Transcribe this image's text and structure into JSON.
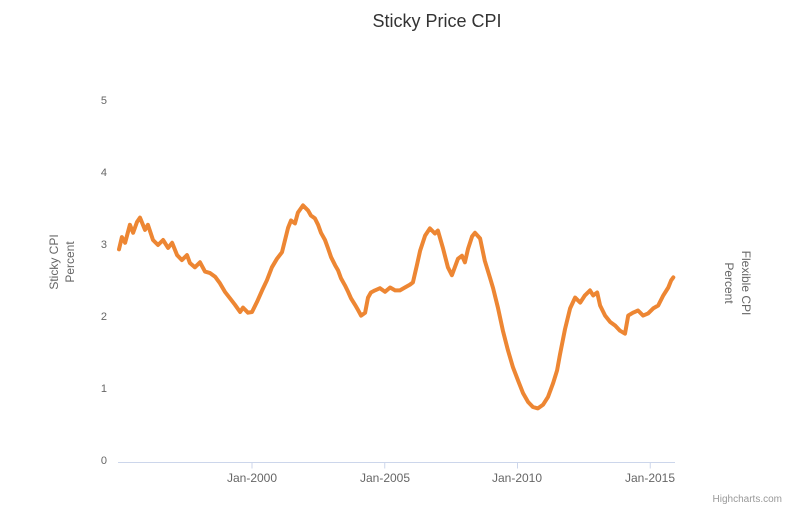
{
  "title": "Sticky Price CPI",
  "credits_label": "Highcharts.com",
  "chart_data": {
    "type": "line",
    "title": "Sticky Price CPI",
    "grid": false,
    "legend_position": "none",
    "x_axis": {
      "kind": "datetime",
      "lim": [
        1994.95,
        2015.95
      ],
      "ticks": [
        {
          "value": 2000,
          "label": "Jan-2000"
        },
        {
          "value": 2005,
          "label": "Jan-2005"
        },
        {
          "value": 2010,
          "label": "Jan-2010"
        },
        {
          "value": 2015,
          "label": "Jan-2015"
        }
      ]
    },
    "y_axis_left": {
      "title_line1": "Sticky CPI",
      "title_line2": "Percent",
      "lim": [
        0,
        5
      ],
      "ticks": [
        "0",
        "1",
        "2",
        "3",
        "4",
        "5"
      ]
    },
    "y_axis_right": {
      "title_line1": "Flexible CPI",
      "title_line2": "Percent",
      "labels_visible": false
    },
    "axis_line_color": "#ccd6eb",
    "series": [
      {
        "name": "Sticky CPI",
        "color": "#ED8633",
        "line_width": 4,
        "points": [
          [
            1994.99,
            2.94
          ],
          [
            1995.1,
            3.11
          ],
          [
            1995.22,
            3.03
          ],
          [
            1995.4,
            3.28
          ],
          [
            1995.52,
            3.17
          ],
          [
            1995.67,
            3.32
          ],
          [
            1995.78,
            3.38
          ],
          [
            1995.97,
            3.21
          ],
          [
            1996.08,
            3.28
          ],
          [
            1996.27,
            3.07
          ],
          [
            1996.46,
            3.0
          ],
          [
            1996.65,
            3.07
          ],
          [
            1996.84,
            2.96
          ],
          [
            1996.99,
            3.03
          ],
          [
            1997.18,
            2.86
          ],
          [
            1997.36,
            2.79
          ],
          [
            1997.55,
            2.86
          ],
          [
            1997.66,
            2.75
          ],
          [
            1997.85,
            2.69
          ],
          [
            1998.04,
            2.76
          ],
          [
            1998.23,
            2.63
          ],
          [
            1998.42,
            2.61
          ],
          [
            1998.61,
            2.56
          ],
          [
            1998.79,
            2.47
          ],
          [
            1998.98,
            2.35
          ],
          [
            1999.17,
            2.26
          ],
          [
            1999.36,
            2.17
          ],
          [
            1999.55,
            2.07
          ],
          [
            1999.66,
            2.13
          ],
          [
            1999.85,
            2.06
          ],
          [
            2000.0,
            2.07
          ],
          [
            2000.19,
            2.21
          ],
          [
            2000.38,
            2.37
          ],
          [
            2000.56,
            2.51
          ],
          [
            2000.75,
            2.69
          ],
          [
            2000.94,
            2.81
          ],
          [
            2001.13,
            2.9
          ],
          [
            2001.36,
            3.24
          ],
          [
            2001.47,
            3.34
          ],
          [
            2001.62,
            3.3
          ],
          [
            2001.73,
            3.45
          ],
          [
            2001.92,
            3.55
          ],
          [
            2002.11,
            3.48
          ],
          [
            2002.22,
            3.41
          ],
          [
            2002.37,
            3.37
          ],
          [
            2002.49,
            3.28
          ],
          [
            2002.6,
            3.17
          ],
          [
            2002.75,
            3.07
          ],
          [
            2002.86,
            2.96
          ],
          [
            2002.98,
            2.83
          ],
          [
            2003.13,
            2.72
          ],
          [
            2003.24,
            2.65
          ],
          [
            2003.35,
            2.54
          ],
          [
            2003.5,
            2.44
          ],
          [
            2003.62,
            2.35
          ],
          [
            2003.73,
            2.26
          ],
          [
            2003.88,
            2.17
          ],
          [
            2003.99,
            2.1
          ],
          [
            2004.11,
            2.02
          ],
          [
            2004.26,
            2.06
          ],
          [
            2004.37,
            2.27
          ],
          [
            2004.48,
            2.34
          ],
          [
            2004.63,
            2.37
          ],
          [
            2004.82,
            2.4
          ],
          [
            2005.01,
            2.35
          ],
          [
            2005.2,
            2.41
          ],
          [
            2005.39,
            2.37
          ],
          [
            2005.57,
            2.37
          ],
          [
            2005.76,
            2.41
          ],
          [
            2005.95,
            2.45
          ],
          [
            2006.06,
            2.48
          ],
          [
            2006.21,
            2.72
          ],
          [
            2006.33,
            2.92
          ],
          [
            2006.52,
            3.13
          ],
          [
            2006.7,
            3.23
          ],
          [
            2006.89,
            3.16
          ],
          [
            2007.0,
            3.2
          ],
          [
            2007.19,
            2.96
          ],
          [
            2007.38,
            2.69
          ],
          [
            2007.53,
            2.58
          ],
          [
            2007.76,
            2.81
          ],
          [
            2007.91,
            2.85
          ],
          [
            2008.02,
            2.76
          ],
          [
            2008.14,
            2.95
          ],
          [
            2008.29,
            3.12
          ],
          [
            2008.4,
            3.17
          ],
          [
            2008.59,
            3.09
          ],
          [
            2008.77,
            2.78
          ],
          [
            2008.96,
            2.55
          ],
          [
            2009.08,
            2.4
          ],
          [
            2009.27,
            2.12
          ],
          [
            2009.45,
            1.81
          ],
          [
            2009.64,
            1.54
          ],
          [
            2009.83,
            1.3
          ],
          [
            2010.02,
            1.12
          ],
          [
            2010.21,
            0.94
          ],
          [
            2010.4,
            0.82
          ],
          [
            2010.58,
            0.75
          ],
          [
            2010.77,
            0.73
          ],
          [
            2010.96,
            0.78
          ],
          [
            2011.15,
            0.89
          ],
          [
            2011.34,
            1.08
          ],
          [
            2011.49,
            1.26
          ],
          [
            2011.6,
            1.48
          ],
          [
            2011.79,
            1.83
          ],
          [
            2011.98,
            2.12
          ],
          [
            2012.17,
            2.27
          ],
          [
            2012.36,
            2.2
          ],
          [
            2012.54,
            2.3
          ],
          [
            2012.73,
            2.37
          ],
          [
            2012.85,
            2.3
          ],
          [
            2013.0,
            2.34
          ],
          [
            2013.11,
            2.16
          ],
          [
            2013.3,
            2.02
          ],
          [
            2013.49,
            1.93
          ],
          [
            2013.68,
            1.88
          ],
          [
            2013.86,
            1.81
          ],
          [
            2014.05,
            1.77
          ],
          [
            2014.17,
            2.02
          ],
          [
            2014.35,
            2.06
          ],
          [
            2014.54,
            2.09
          ],
          [
            2014.73,
            2.02
          ],
          [
            2014.92,
            2.05
          ],
          [
            2015.11,
            2.12
          ],
          [
            2015.3,
            2.16
          ],
          [
            2015.49,
            2.3
          ],
          [
            2015.68,
            2.41
          ],
          [
            2015.79,
            2.51
          ],
          [
            2015.87,
            2.55
          ]
        ]
      }
    ]
  }
}
